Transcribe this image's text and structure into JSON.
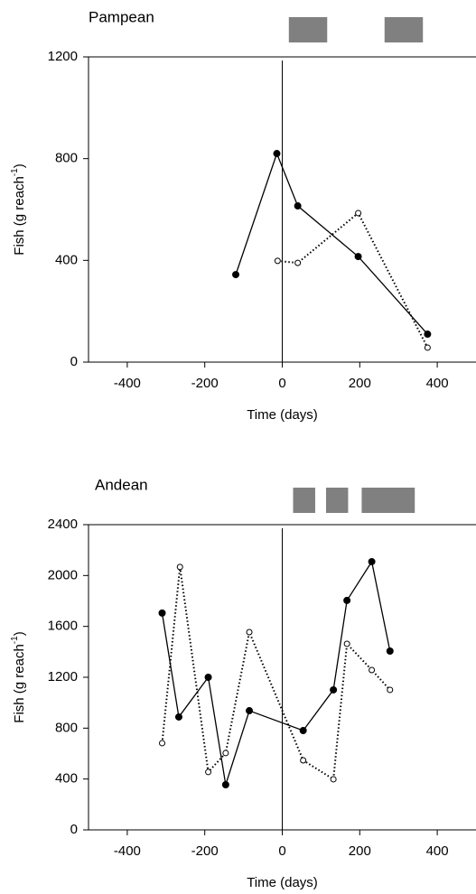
{
  "chart_data": [
    {
      "type": "line",
      "title": "Pampean",
      "xlabel": "Time (days)",
      "ylabel": {
        "text": "Fish (g reach",
        "superscript": "-1",
        "suffix": ")"
      },
      "xlim": [
        -500,
        500
      ],
      "xticks": [
        -400,
        -200,
        0,
        200,
        400
      ],
      "ylim": [
        0,
        1200
      ],
      "yticks": [
        0,
        400,
        800,
        1200
      ],
      "vline": 0,
      "periods": [
        [
          17,
          116
        ],
        [
          264,
          363
        ]
      ],
      "period_color": "#808080",
      "series": [
        {
          "color": "#000000",
          "marker": "filled",
          "dash": "solid",
          "x": [
            -120,
            -14,
            40,
            196,
            375
          ],
          "values": [
            344,
            820,
            614,
            415,
            110
          ]
        },
        {
          "color": "#000000",
          "marker": "open",
          "dash": "dotted",
          "x": [
            -12,
            40,
            196,
            375
          ],
          "values": [
            398,
            390,
            586,
            57
          ]
        }
      ]
    },
    {
      "type": "line",
      "title": "Andean",
      "xlabel": "Time (days)",
      "ylabel": {
        "text": "Fish (g reach",
        "superscript": "-1",
        "suffix": ")"
      },
      "xlim": [
        -500,
        500
      ],
      "xticks": [
        -400,
        -200,
        0,
        200,
        400
      ],
      "ylim": [
        0,
        2400
      ],
      "yticks": [
        0,
        400,
        800,
        1200,
        1600,
        2000,
        2400
      ],
      "vline": 0,
      "periods": [
        [
          28,
          85
        ],
        [
          113,
          170
        ],
        [
          205,
          342
        ]
      ],
      "period_color": "#808080",
      "series": [
        {
          "color": "#000000",
          "marker": "filled",
          "dash": "solid",
          "x": [
            -310,
            -267,
            -191,
            -146,
            -85,
            54,
            132,
            167,
            231,
            278
          ],
          "values": [
            1705,
            888,
            1200,
            355,
            937,
            781,
            1101,
            1804,
            2109,
            1406
          ]
        },
        {
          "color": "#000000",
          "marker": "open",
          "dash": "dotted",
          "x": [
            -310,
            -264,
            -191,
            -146,
            -85,
            54,
            132,
            167,
            231,
            278
          ],
          "values": [
            682,
            2067,
            455,
            604,
            1555,
            547,
            398,
            1463,
            1257,
            1101
          ]
        }
      ]
    }
  ]
}
